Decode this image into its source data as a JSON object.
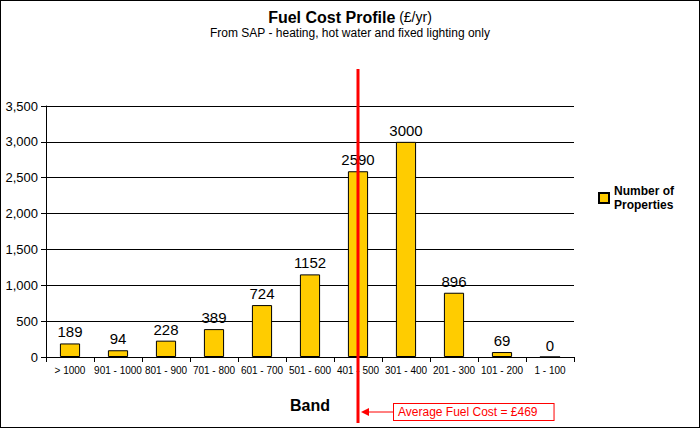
{
  "chart_data": {
    "type": "bar",
    "title": "Fuel Cost Profile (£/yr)",
    "subtitle": "From SAP - heating, hot water and fixed lighting only",
    "x_label": "Band",
    "categories": [
      "> 1000",
      "901 - 1000",
      "801 - 900",
      "701 - 800",
      "601 - 700",
      "501 - 600",
      "401 - 500",
      "301 - 400",
      "201 - 300",
      "101 - 200",
      "1 - 100"
    ],
    "series": [
      {
        "name": "Number of Properties",
        "color": "#ffcc00",
        "values": [
          189,
          94,
          228,
          389,
          724,
          1152,
          2590,
          3000,
          896,
          69,
          0
        ]
      }
    ],
    "ylim": [
      0,
      3500
    ],
    "yticks": [
      0,
      500,
      1000,
      1500,
      2000,
      2500,
      3000,
      3500
    ],
    "grid": true,
    "legend": "right",
    "data_labels": true,
    "annotations": [
      {
        "text": "Average Fuel Cost = £469",
        "x": "401 - 500",
        "color": "#ff0000"
      }
    ]
  }
}
